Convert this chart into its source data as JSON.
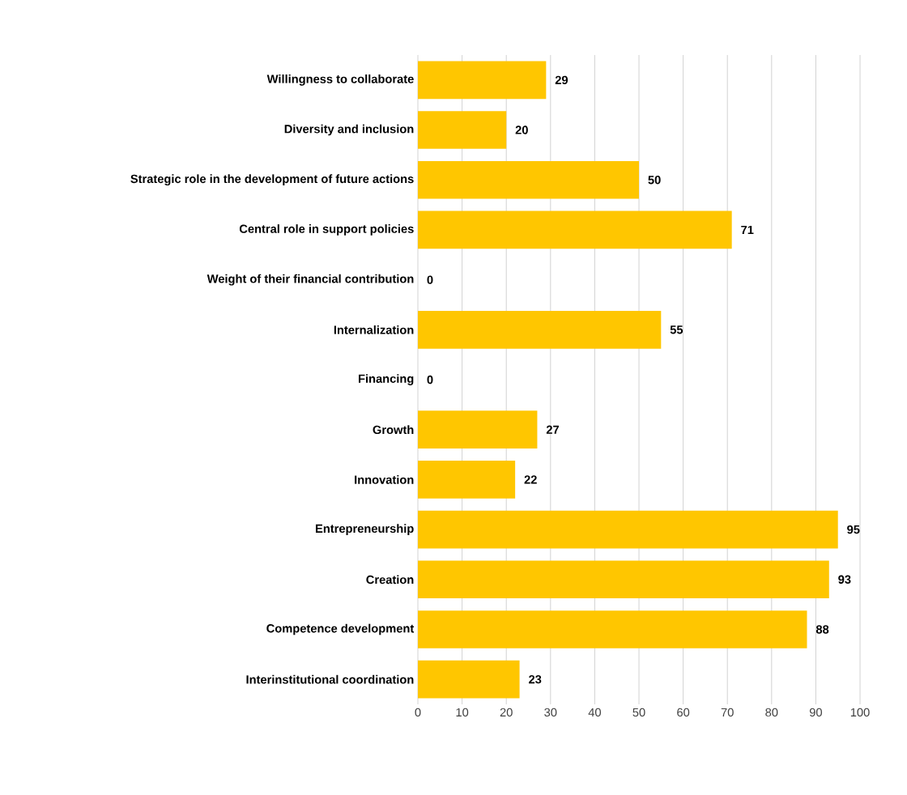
{
  "chart_data": {
    "type": "bar",
    "orientation": "horizontal",
    "categories": [
      "Willingness to collaborate",
      "Diversity and inclusion",
      "Strategic role in the development of future actions",
      "Central role in support policies",
      "Weight of their financial contribution",
      "Internalization",
      "Financing",
      "Growth",
      "Innovation",
      "Entrepreneurship",
      "Creation",
      "Competence development",
      "Interinstitutional coordination"
    ],
    "values": [
      29,
      20,
      50,
      71,
      0,
      55,
      0,
      27,
      22,
      95,
      93,
      88,
      23
    ],
    "color": "#ffc600",
    "xlim": [
      0,
      100
    ],
    "xticks": [
      0,
      10,
      20,
      30,
      40,
      50,
      60,
      70,
      80,
      90,
      100
    ],
    "grid": "x",
    "data_labels": true
  }
}
